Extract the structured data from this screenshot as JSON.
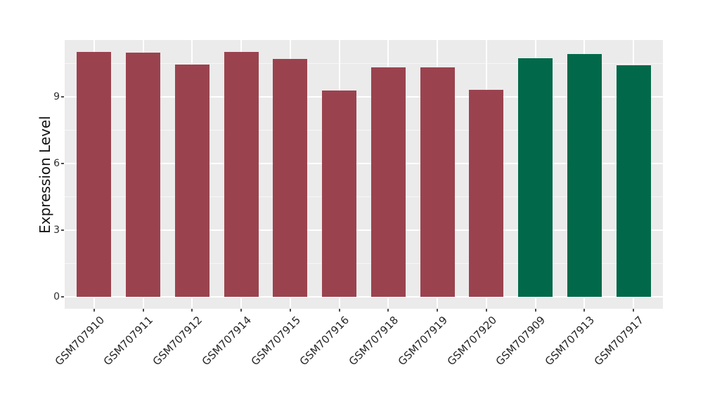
{
  "figure": {
    "background": "#ffffff"
  },
  "chart_data": {
    "type": "bar",
    "title": "",
    "xlabel": "",
    "ylabel": "Expression Level",
    "categories": [
      "GSM707910",
      "GSM707911",
      "GSM707912",
      "GSM707914",
      "GSM707915",
      "GSM707916",
      "GSM707918",
      "GSM707919",
      "GSM707920",
      "GSM707909",
      "GSM707913",
      "GSM707917"
    ],
    "values": [
      11.02,
      10.98,
      10.45,
      11.02,
      10.7,
      9.28,
      10.33,
      10.33,
      9.32,
      10.73,
      10.92,
      10.4
    ],
    "bar_groups": [
      "red",
      "red",
      "red",
      "red",
      "red",
      "red",
      "red",
      "red",
      "red",
      "green",
      "green",
      "green"
    ],
    "group_colors": {
      "red": "#9A434F",
      "green": "#01694A"
    },
    "yticks": [
      0,
      3,
      6,
      9
    ],
    "yminor": [
      1.5,
      4.5,
      7.5,
      10.5
    ],
    "ylim": [
      -0.55,
      11.55
    ],
    "grid": true,
    "legend": false,
    "panel_bg": "#EBEBEB",
    "grid_major_color": "#FFFFFF",
    "grid_minor_color": "#F7F7F7",
    "tick_color": "#4d4d4d",
    "bar_width_fraction": 0.7,
    "x_expand": 0.6
  }
}
